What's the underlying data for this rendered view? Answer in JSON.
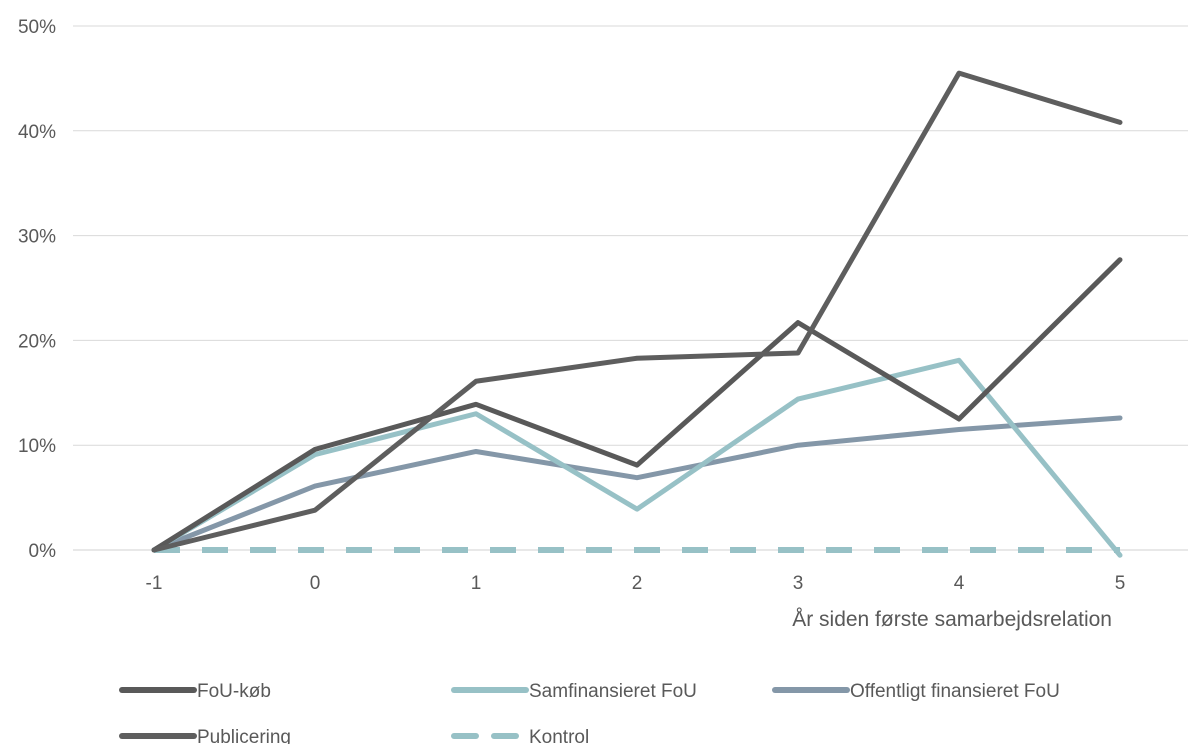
{
  "chart_data": {
    "type": "line",
    "title": "",
    "xlabel": "År siden første samarbejdsrelation",
    "ylabel": "",
    "x": [
      "-1",
      "0",
      "1",
      "2",
      "3",
      "4",
      "5"
    ],
    "ylim": [
      0,
      50
    ],
    "yticks": [
      0,
      10,
      20,
      30,
      40,
      50
    ],
    "ytick_labels": [
      "0%",
      "10%",
      "20%",
      "30%",
      "40%",
      "50%"
    ],
    "grid": "horizontal",
    "legend_position": "bottom",
    "series": [
      {
        "name": "FoU-køb",
        "values": [
          0,
          9.6,
          13.9,
          8.1,
          21.7,
          12.5,
          27.7
        ],
        "color": "#595959",
        "dash": "solid"
      },
      {
        "name": "Samfinansieret FoU",
        "values": [
          0,
          9.1,
          13.0,
          3.9,
          14.4,
          18.1,
          -0.5
        ],
        "color": "#97c1c6",
        "dash": "solid"
      },
      {
        "name": "Offentligt finansieret FoU",
        "values": [
          0,
          6.1,
          9.4,
          6.9,
          10.0,
          11.5,
          12.6
        ],
        "color": "#8497a8",
        "dash": "solid"
      },
      {
        "name": "Publicering",
        "values": [
          0,
          3.8,
          16.1,
          18.3,
          18.8,
          45.5,
          40.8
        ],
        "color": "#5e5e5e",
        "dash": "solid"
      },
      {
        "name": "Kontrol",
        "values": [
          0,
          0,
          0,
          0,
          0,
          0,
          0
        ],
        "color": "#97c1c6",
        "dash": "dashed"
      }
    ]
  }
}
